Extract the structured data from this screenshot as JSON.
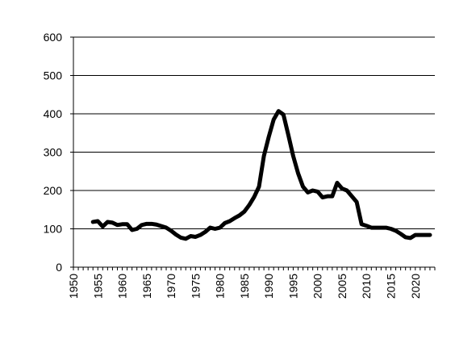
{
  "chart_data": {
    "type": "line",
    "title": "",
    "xlabel": "",
    "ylabel": "",
    "xlim": [
      1950,
      2024
    ],
    "ylim": [
      0,
      600
    ],
    "x_ticks": [
      "1950",
      "1955",
      "1960",
      "1965",
      "1970",
      "1975",
      "1980",
      "1985",
      "1990",
      "1995",
      "2000",
      "2005",
      "2010",
      "2015",
      "2020"
    ],
    "y_ticks": [
      "0",
      "100",
      "200",
      "300",
      "400",
      "500",
      "600"
    ],
    "grid": "horizontal",
    "legend": "none",
    "series": [
      {
        "color": "#000000",
        "x": [
          1954,
          1955,
          1956,
          1957,
          1958,
          1959,
          1960,
          1961,
          1962,
          1963,
          1964,
          1965,
          1966,
          1967,
          1968,
          1969,
          1970,
          1971,
          1972,
          1973,
          1974,
          1975,
          1976,
          1977,
          1978,
          1979,
          1980,
          1981,
          1982,
          1983,
          1984,
          1985,
          1986,
          1987,
          1988,
          1989,
          1990,
          1991,
          1992,
          1993,
          1994,
          1995,
          1996,
          1997,
          1998,
          1999,
          2000,
          2001,
          2002,
          2003,
          2004,
          2005,
          2006,
          2007,
          2008,
          2009,
          2010,
          2011,
          2012,
          2013,
          2014,
          2015,
          2016,
          2017,
          2018,
          2019,
          2020,
          2021,
          2022,
          2023
        ],
        "y": [
          118,
          120,
          106,
          118,
          116,
          110,
          112,
          112,
          97,
          100,
          110,
          113,
          113,
          111,
          107,
          103,
          95,
          85,
          77,
          74,
          81,
          79,
          84,
          92,
          103,
          100,
          103,
          115,
          120,
          128,
          135,
          145,
          162,
          183,
          210,
          290,
          340,
          385,
          407,
          398,
          345,
          290,
          245,
          210,
          195,
          200,
          197,
          182,
          185,
          185,
          220,
          205,
          200,
          185,
          170,
          112,
          108,
          103,
          103,
          103,
          103,
          100,
          95,
          87,
          78,
          76,
          84,
          84,
          84,
          84
        ]
      }
    ]
  }
}
